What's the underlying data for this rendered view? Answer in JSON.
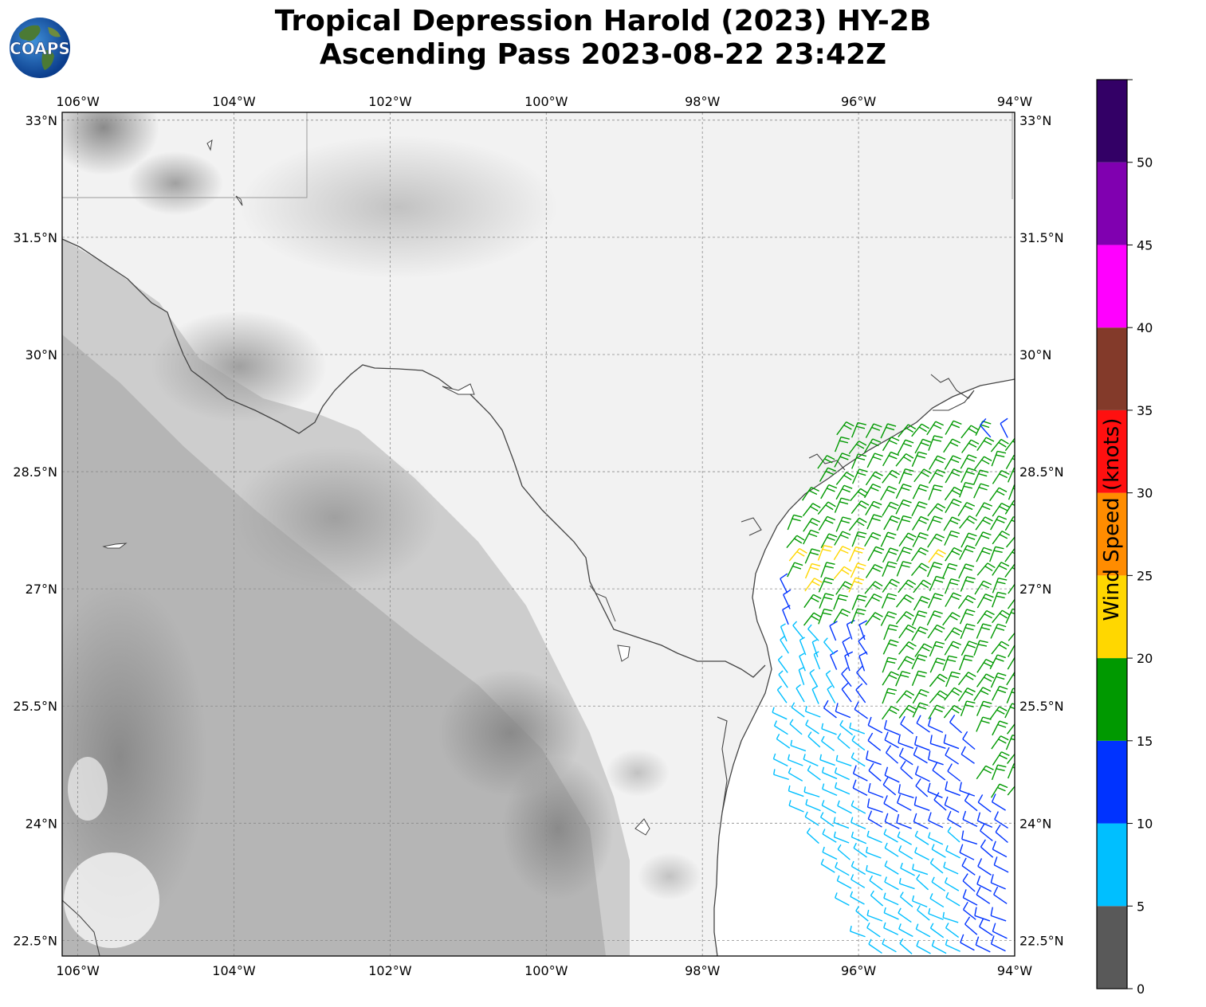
{
  "title": {
    "line1": "Tropical Depression Harold (2023) HY-2B",
    "line2": "Ascending Pass 2023-08-22 23:42Z"
  },
  "logo": {
    "text": "COAPS",
    "icon": "globe-logo-icon"
  },
  "map": {
    "lon_range": [
      -106.2,
      -94.0
    ],
    "lat_range": [
      22.3,
      33.1
    ],
    "lon_ticks": [
      "106°W",
      "104°W",
      "102°W",
      "100°W",
      "98°W",
      "96°W",
      "94°W"
    ],
    "lon_values": [
      -106,
      -104,
      -102,
      -100,
      -98,
      -96,
      -94
    ],
    "lat_ticks": [
      "33°N",
      "31.5°N",
      "30°N",
      "28.5°N",
      "27°N",
      "25.5°N",
      "24°N",
      "22.5°N"
    ],
    "lat_values": [
      33,
      31.5,
      30,
      28.5,
      27,
      25.5,
      24,
      22.5
    ],
    "gridlines": true,
    "background": "grayscale-terrain",
    "ocean_color": "#ffffff"
  },
  "colorbar": {
    "label": "Wind Speed (knots)",
    "bins": [
      {
        "min": 0,
        "max": 5,
        "color": "#595959"
      },
      {
        "min": 5,
        "max": 10,
        "color": "#00bfff"
      },
      {
        "min": 10,
        "max": 15,
        "color": "#0033ff"
      },
      {
        "min": 15,
        "max": 20,
        "color": "#009900"
      },
      {
        "min": 20,
        "max": 25,
        "color": "#ffd700"
      },
      {
        "min": 25,
        "max": 30,
        "color": "#ff8c00"
      },
      {
        "min": 30,
        "max": 35,
        "color": "#ff1010"
      },
      {
        "min": 35,
        "max": 40,
        "color": "#833a2a"
      },
      {
        "min": 40,
        "max": 45,
        "color": "#ff00ff"
      },
      {
        "min": 45,
        "max": 50,
        "color": "#8000b0"
      },
      {
        "min": 50,
        "max": 55,
        "color": "#330066"
      }
    ],
    "tick_labels": [
      "0",
      "5",
      "10",
      "15",
      "20",
      "25",
      "30",
      "35",
      "40",
      "45",
      "50"
    ]
  }
}
